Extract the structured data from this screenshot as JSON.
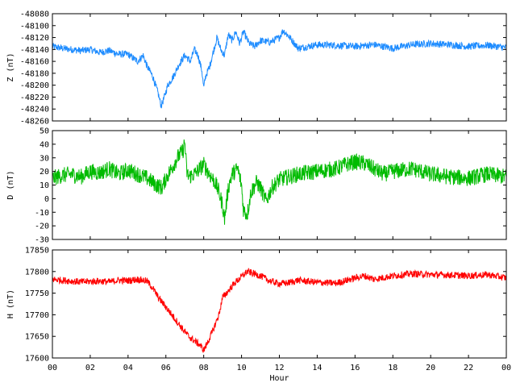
{
  "chart_data": [
    {
      "type": "line",
      "ylabel": "Z (nT)",
      "color": "#1e8cff",
      "ylim": [
        -48260,
        -48080
      ],
      "yticks": [
        "-48080",
        "-48100",
        "-48120",
        "-48140",
        "-48160",
        "-48180",
        "-48200",
        "-48220",
        "-48240",
        "-48260"
      ],
      "ytick_values": [
        -48080,
        -48100,
        -48120,
        -48140,
        -48160,
        -48180,
        -48200,
        -48220,
        -48240,
        -48260
      ],
      "noise": 6,
      "series": [
        {
          "x": [
            0,
            0.5,
            1,
            1.5,
            2,
            2.5,
            3,
            3.5,
            4,
            4.5,
            4.8,
            5.0,
            5.3,
            5.6,
            5.75,
            5.9,
            6.1,
            6.4,
            6.7,
            7.0,
            7.3,
            7.5,
            7.7,
            7.9,
            8.0,
            8.1,
            8.3,
            8.5,
            8.7,
            8.9,
            9.1,
            9.3,
            9.5,
            9.7,
            9.9,
            10.1,
            10.4,
            10.7,
            11.0,
            11.5,
            12.0,
            12.2,
            12.5,
            12.8,
            13.0,
            13.5,
            14,
            15,
            16,
            17,
            18,
            19,
            20,
            21,
            22,
            23,
            24
          ],
          "y": [
            -48135,
            -48138,
            -48140,
            -48142,
            -48140,
            -48145,
            -48142,
            -48148,
            -48148,
            -48160,
            -48150,
            -48168,
            -48185,
            -48215,
            -48235,
            -48222,
            -48200,
            -48185,
            -48165,
            -48150,
            -48160,
            -48140,
            -48150,
            -48175,
            -48205,
            -48185,
            -48170,
            -48145,
            -48120,
            -48140,
            -48150,
            -48115,
            -48125,
            -48110,
            -48130,
            -48110,
            -48130,
            -48135,
            -48125,
            -48128,
            -48120,
            -48108,
            -48118,
            -48130,
            -48138,
            -48135,
            -48132,
            -48133,
            -48135,
            -48132,
            -48138,
            -48132,
            -48130,
            -48132,
            -48135,
            -48133,
            -48137
          ]
        }
      ]
    },
    {
      "type": "line",
      "ylabel": "D (nT)",
      "color": "#00bb00",
      "ylim": [
        -30,
        50
      ],
      "yticks": [
        "50",
        "40",
        "30",
        "20",
        "10",
        "0",
        "-10",
        "-20",
        "-30"
      ],
      "ytick_values": [
        50,
        40,
        30,
        20,
        10,
        0,
        -10,
        -20,
        -30
      ],
      "noise": 6,
      "series": [
        {
          "x": [
            0,
            0.5,
            1,
            1.5,
            2,
            2.5,
            3,
            3.5,
            4,
            4.5,
            5,
            5.5,
            5.8,
            6.0,
            6.3,
            6.6,
            6.9,
            7.0,
            7.1,
            7.2,
            7.5,
            7.8,
            8.0,
            8.3,
            8.6,
            8.8,
            9.0,
            9.1,
            9.3,
            9.5,
            9.8,
            10.0,
            10.1,
            10.3,
            10.5,
            10.8,
            11.0,
            11.3,
            11.6,
            12.0,
            12.5,
            13,
            14,
            15,
            15.5,
            16,
            16.5,
            17,
            17.5,
            18,
            19,
            20,
            21,
            22,
            23,
            24
          ],
          "y": [
            15,
            17,
            18,
            16,
            20,
            19,
            22,
            18,
            21,
            18,
            15,
            10,
            8,
            15,
            22,
            30,
            35,
            42,
            20,
            16,
            18,
            22,
            25,
            18,
            12,
            5,
            -5,
            -15,
            8,
            18,
            22,
            10,
            -8,
            -12,
            5,
            12,
            8,
            -2,
            8,
            14,
            16,
            18,
            20,
            22,
            25,
            27,
            26,
            22,
            18,
            20,
            22,
            18,
            16,
            15,
            18,
            16
          ]
        }
      ]
    },
    {
      "type": "line",
      "ylabel": "H (nT)",
      "color": "#ff0000",
      "ylim": [
        17600,
        17850
      ],
      "yticks": [
        "17850",
        "17800",
        "17750",
        "17700",
        "17650",
        "17600"
      ],
      "ytick_values": [
        17850,
        17800,
        17750,
        17700,
        17650,
        17600
      ],
      "xlabel": "Hour",
      "xlim": [
        0,
        24
      ],
      "xticks": [
        "00",
        "02",
        "04",
        "06",
        "08",
        "10",
        "12",
        "14",
        "16",
        "18",
        "20",
        "22",
        "00"
      ],
      "xtick_values": [
        0,
        2,
        4,
        6,
        8,
        10,
        12,
        14,
        16,
        18,
        20,
        22,
        24
      ],
      "noise": 8,
      "series": [
        {
          "x": [
            0,
            0.5,
            1,
            1.5,
            2,
            2.5,
            3,
            3.5,
            4,
            4.5,
            5,
            5.3,
            5.6,
            6.0,
            6.4,
            6.8,
            7.2,
            7.5,
            7.8,
            8.0,
            8.2,
            8.5,
            8.8,
            9.0,
            9.3,
            9.6,
            10.0,
            10.3,
            10.6,
            11.0,
            11.5,
            12,
            12.5,
            13,
            14,
            15,
            16,
            16.5,
            17,
            18,
            19,
            20,
            21,
            22,
            23,
            24
          ],
          "y": [
            17782,
            17780,
            17778,
            17776,
            17777,
            17778,
            17776,
            17780,
            17779,
            17782,
            17778,
            17762,
            17740,
            17718,
            17695,
            17672,
            17650,
            17640,
            17630,
            17618,
            17635,
            17665,
            17700,
            17740,
            17755,
            17772,
            17788,
            17800,
            17796,
            17790,
            17778,
            17772,
            17774,
            17780,
            17775,
            17773,
            17785,
            17790,
            17782,
            17790,
            17795,
            17793,
            17792,
            17790,
            17793,
            17785
          ]
        }
      ]
    }
  ]
}
